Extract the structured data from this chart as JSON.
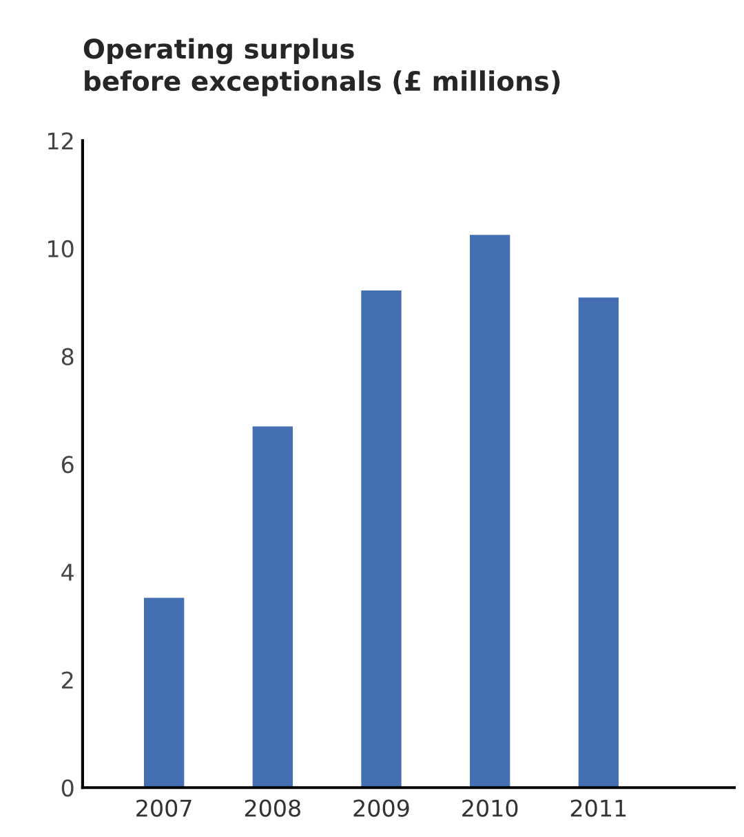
{
  "chart_data": {
    "type": "bar",
    "title": "Operating surplus\nbefore exceptionals (£ millions)",
    "categories": [
      "2007",
      "2008",
      "2009",
      "2010",
      "2011"
    ],
    "values": [
      3.52,
      6.7,
      9.22,
      10.25,
      9.09
    ],
    "color": "#4470b3",
    "ylim": [
      0,
      12
    ],
    "yticks": [
      0,
      2,
      4,
      6,
      8,
      10,
      12
    ],
    "grid": false
  }
}
